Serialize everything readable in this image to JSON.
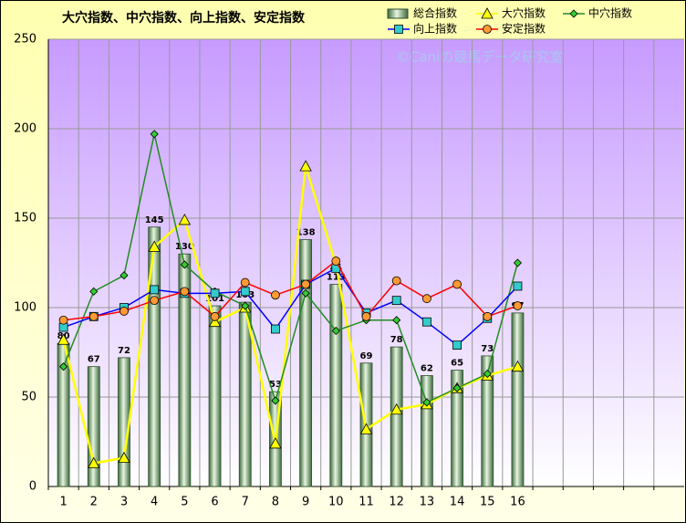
{
  "chart_data": {
    "type": "bar-line",
    "title": "大穴指数、中穴指数、向上指数、安定指数",
    "watermark": "©Caniの競馬データ研究室",
    "categories": [
      "1",
      "2",
      "3",
      "4",
      "5",
      "6",
      "7",
      "8",
      "9",
      "10",
      "11",
      "12",
      "13",
      "14",
      "15",
      "16",
      null,
      null,
      null,
      null,
      null
    ],
    "ylim": [
      0,
      250
    ],
    "yticks": [
      0,
      50,
      100,
      150,
      200,
      250
    ],
    "grid": true,
    "series": [
      {
        "name": "総合指数",
        "kind": "bar",
        "color": "#a9d18e",
        "values": [
          80,
          67,
          72,
          145,
          130,
          101,
          103,
          53,
          138,
          113,
          69,
          78,
          62,
          65,
          73,
          97,
          null,
          null,
          null,
          null,
          null
        ]
      },
      {
        "name": "大穴指数",
        "kind": "line",
        "marker": "triangle",
        "color": "#ffff00",
        "marker_color": "#ffff00",
        "values": [
          82,
          13,
          16,
          134,
          149,
          92,
          100,
          24,
          179,
          124,
          32,
          43,
          46,
          55,
          62,
          67,
          null,
          null,
          null,
          null,
          null
        ]
      },
      {
        "name": "中穴指数",
        "kind": "line",
        "marker": "diamond",
        "color": "#228b22",
        "marker_color": "#33cc33",
        "values": [
          67,
          109,
          118,
          197,
          124,
          109,
          101,
          48,
          108,
          87,
          93,
          93,
          47,
          55,
          63,
          125,
          null,
          null,
          null,
          null,
          null
        ]
      },
      {
        "name": "向上指数",
        "kind": "line",
        "marker": "square",
        "color": "#0000ff",
        "marker_color": "#33cccc",
        "values": [
          89,
          95,
          100,
          110,
          108,
          108,
          109,
          88,
          113,
          122,
          97,
          104,
          92,
          79,
          94,
          112,
          null,
          null,
          null,
          null,
          null
        ]
      },
      {
        "name": "安定指数",
        "kind": "line",
        "marker": "circle",
        "color": "#ff0000",
        "marker_color": "#ff9933",
        "values": [
          93,
          95,
          98,
          104,
          109,
          95,
          114,
          107,
          113,
          126,
          95,
          115,
          105,
          113,
          95,
          101,
          null,
          null,
          null,
          null,
          null
        ]
      }
    ]
  }
}
